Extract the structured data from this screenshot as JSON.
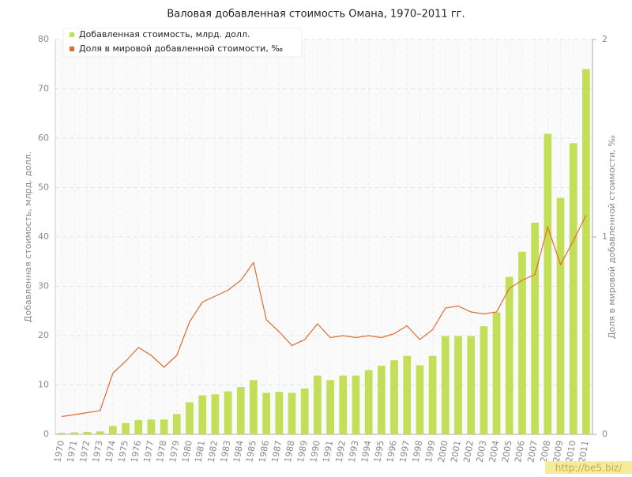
{
  "chart_data": {
    "type": "combo",
    "title": "Валовая добавленная стоимость Омана, 1970–2011 гг.",
    "y_label": "Добавленная стоимость, млрд. долл.",
    "y2_label": "Доля в мировой добавленной стоимости, ‰",
    "categories": [
      "1970",
      "1971",
      "1972",
      "1973",
      "1974",
      "1975",
      "1976",
      "1977",
      "1978",
      "1979",
      "1980",
      "1981",
      "1982",
      "1983",
      "1984",
      "1985",
      "1986",
      "1987",
      "1988",
      "1989",
      "1990",
      "1991",
      "1992",
      "1993",
      "1994",
      "1995",
      "1996",
      "1997",
      "1998",
      "1999",
      "2000",
      "2001",
      "2002",
      "2003",
      "2004",
      "2005",
      "2006",
      "2007",
      "2008",
      "2009",
      "2010",
      "2011"
    ],
    "series": [
      {
        "name": "Добавленная стоимость, млрд. долл.",
        "type": "bar",
        "color": "#c3df57",
        "values": [
          0.3,
          0.4,
          0.5,
          0.6,
          1.7,
          2.3,
          2.9,
          3.0,
          3.0,
          4.1,
          6.5,
          7.9,
          8.1,
          8.7,
          9.6,
          11.0,
          8.4,
          8.6,
          8.4,
          9.3,
          11.9,
          11.0,
          11.9,
          11.9,
          13.0,
          13.9,
          15.0,
          15.9,
          14.0,
          15.9,
          19.9,
          19.9,
          19.9,
          21.9,
          24.7,
          31.9,
          37.0,
          42.9,
          60.9,
          47.9,
          59.0,
          74.0
        ]
      },
      {
        "name": "Доля в мировой добавленной стоимости, ‰",
        "type": "line",
        "axis": "y2",
        "color": "#e06a35",
        "values": [
          0.09,
          0.1,
          0.11,
          0.12,
          0.31,
          0.37,
          0.44,
          0.4,
          0.34,
          0.4,
          0.57,
          0.67,
          0.7,
          0.73,
          0.78,
          0.87,
          0.58,
          0.52,
          0.45,
          0.48,
          0.56,
          0.49,
          0.5,
          0.49,
          0.5,
          0.49,
          0.51,
          0.55,
          0.48,
          0.53,
          0.64,
          0.65,
          0.62,
          0.61,
          0.62,
          0.74,
          0.78,
          0.81,
          1.05,
          0.86,
          0.98,
          1.11
        ]
      }
    ],
    "ylim": [
      0,
      80
    ],
    "yticks": [
      0,
      10,
      20,
      30,
      40,
      50,
      60,
      70,
      80
    ],
    "y2lim": [
      0,
      2
    ],
    "y2ticks": [
      0,
      1,
      2
    ],
    "grid": true,
    "legend": "top-left",
    "watermark": "http://be5.biz/"
  }
}
